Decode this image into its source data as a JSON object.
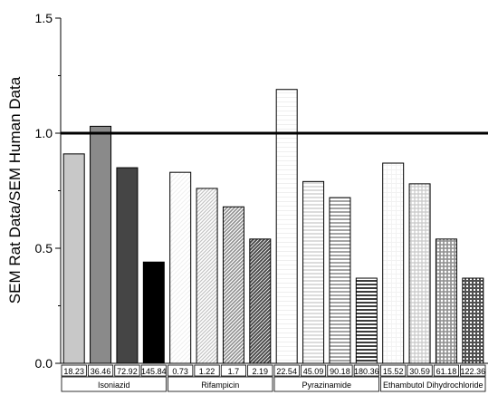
{
  "chart_data": {
    "type": "bar",
    "title": "",
    "xlabel": "",
    "ylabel": "SEM Rat Data/SEM Human Data",
    "ylim": [
      0,
      1.5
    ],
    "yticks": [
      "0.0",
      "0.5",
      "1.0",
      "1.5"
    ],
    "reference_line": 1.0,
    "grid": false,
    "groups": [
      {
        "name": "Isoniazid",
        "categories": [
          "18.23",
          "36.46",
          "72.92",
          "145.84"
        ],
        "values": [
          0.91,
          1.03,
          0.85,
          0.44
        ],
        "fills": [
          "#c8c8c8",
          "#8a8a8a",
          "#454545",
          "#000000"
        ]
      },
      {
        "name": "Rifampicin",
        "categories": [
          "0.73",
          "1.22",
          "1.7",
          "2.19"
        ],
        "values": [
          0.83,
          0.76,
          0.68,
          0.54
        ],
        "fills": [
          "#f0f0f0",
          "#c4c4c4",
          "#8e8e8e",
          "#4a4a4a"
        ]
      },
      {
        "name": "Pyrazinamide",
        "categories": [
          "22.54",
          "45.09",
          "90.18",
          "180.36"
        ],
        "values": [
          1.19,
          0.79,
          0.72,
          0.37
        ],
        "fills": [
          "#efefef",
          "#c4c4c4",
          "#8e8e8e",
          "#3c3c3c"
        ]
      },
      {
        "name": "Ethambutol Dihydrochloride",
        "categories": [
          "15.52",
          "30.59",
          "61.18",
          "122.36"
        ],
        "values": [
          0.87,
          0.78,
          0.54,
          0.37
        ],
        "fills": [
          "#f2f2f2",
          "#c8c8c8",
          "#8e8e8e",
          "#505050"
        ]
      }
    ]
  }
}
